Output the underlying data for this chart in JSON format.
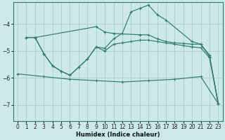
{
  "xlabel": "Humidex (Indice chaleur)",
  "bg_color": "#cce8e8",
  "line_color": "#2e7d6e",
  "grid_color": "#aacece",
  "xlim": [
    -0.5,
    23.5
  ],
  "ylim": [
    -7.6,
    -3.2
  ],
  "yticks": [
    -7,
    -6,
    -5,
    -4
  ],
  "xticks": [
    0,
    1,
    2,
    3,
    4,
    5,
    6,
    7,
    8,
    9,
    10,
    11,
    12,
    13,
    14,
    15,
    16,
    17,
    18,
    19,
    20,
    21,
    22,
    23
  ],
  "curve1_x": [
    1,
    2,
    9,
    10,
    11,
    14,
    15,
    16,
    17,
    18,
    19,
    20,
    21,
    22,
    23
  ],
  "curve1_y": [
    -4.5,
    -4.5,
    -4.1,
    -4.3,
    -4.35,
    -4.4,
    -4.4,
    -4.55,
    -4.65,
    -4.7,
    -4.72,
    -4.75,
    -4.75,
    -5.15,
    -6.95
  ],
  "curve2_x": [
    1,
    2,
    3,
    4,
    5,
    6,
    7,
    8,
    9,
    10,
    11,
    12,
    13,
    14,
    15,
    16,
    17,
    20,
    21,
    22,
    23
  ],
  "curve2_y": [
    -4.5,
    -4.5,
    -5.1,
    -5.55,
    -5.75,
    -5.9,
    -5.6,
    -5.3,
    -4.85,
    -4.9,
    -4.55,
    -4.35,
    -3.55,
    -3.42,
    -3.3,
    -3.65,
    -3.85,
    -4.65,
    -4.75,
    -5.2,
    -6.95
  ],
  "curve3_x": [
    1,
    2,
    3,
    4,
    5,
    6,
    7,
    8,
    9,
    10,
    11,
    12,
    13,
    14,
    15,
    16,
    17,
    18,
    19,
    20,
    21,
    22,
    23
  ],
  "curve3_y": [
    -4.5,
    -4.5,
    -5.1,
    -5.55,
    -5.75,
    -5.9,
    -5.6,
    -5.3,
    -4.85,
    -5.0,
    -4.75,
    -4.7,
    -4.65,
    -4.6,
    -4.6,
    -4.65,
    -4.7,
    -4.75,
    -4.8,
    -4.85,
    -4.88,
    -5.25,
    -6.95
  ],
  "curve4_x": [
    0,
    3,
    6,
    9,
    12,
    15,
    18,
    21,
    23
  ],
  "curve4_y": [
    -5.85,
    -5.95,
    -6.05,
    -6.1,
    -6.15,
    -6.1,
    -6.05,
    -5.95,
    -6.95
  ]
}
